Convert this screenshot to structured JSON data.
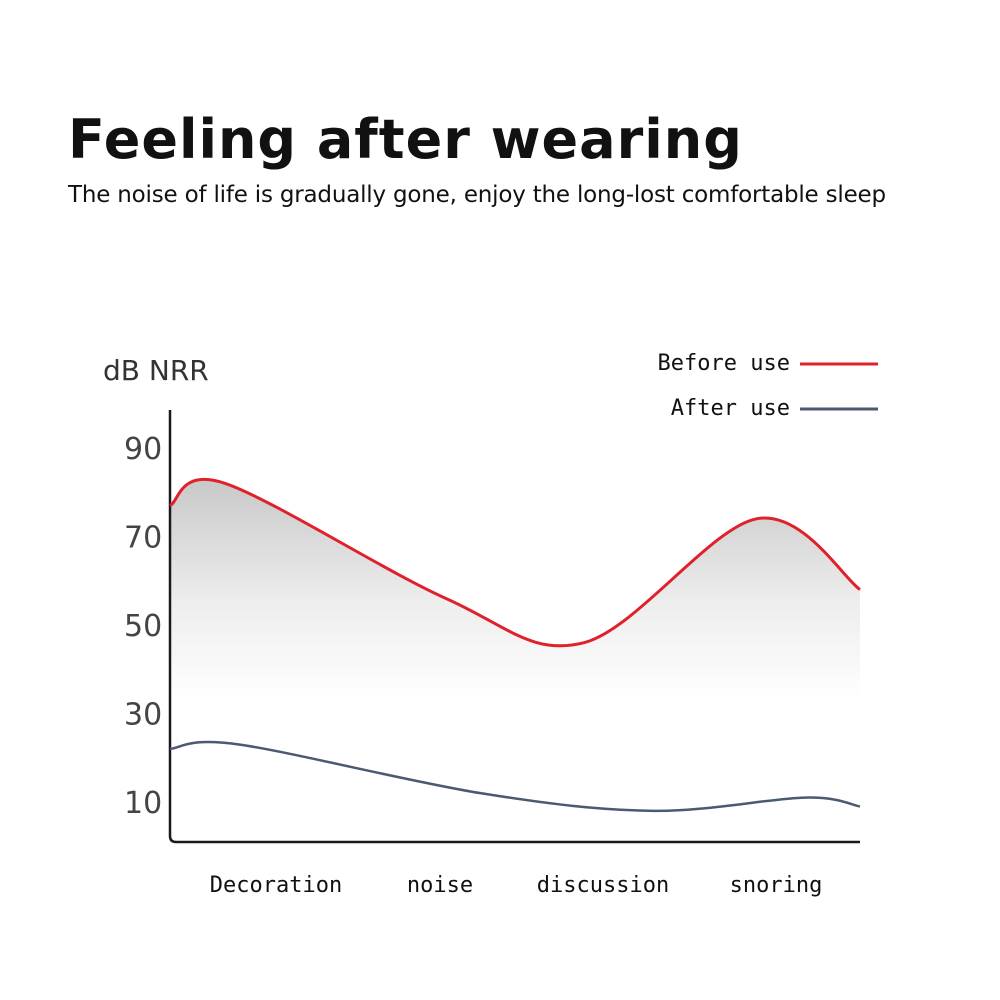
{
  "header": {
    "title": "Feeling after wearing",
    "subtitle": "The noise of life is gradually gone, enjoy the long-lost comfortable sleep"
  },
  "chart_data": {
    "type": "line",
    "ylabel": "dB NRR",
    "xlabel": "",
    "yticks": [
      90,
      70,
      50,
      30,
      10
    ],
    "ylim": [
      0,
      100
    ],
    "categories": [
      "Decoration",
      "noise",
      "discussion",
      "snoring"
    ],
    "grid": false,
    "legend_position": "top-right",
    "series": [
      {
        "name": "Before use",
        "color": "#e0212c",
        "x": [
          0,
          0.08,
          0.4,
          0.6,
          0.85,
          1.0
        ],
        "values": [
          77,
          82,
          56,
          46,
          74,
          58
        ]
      },
      {
        "name": "After use",
        "color": "#4a5a70",
        "x": [
          0,
          0.1,
          0.45,
          0.7,
          0.92,
          1.0
        ],
        "values": [
          22,
          23,
          12,
          8,
          11,
          9
        ]
      }
    ]
  }
}
